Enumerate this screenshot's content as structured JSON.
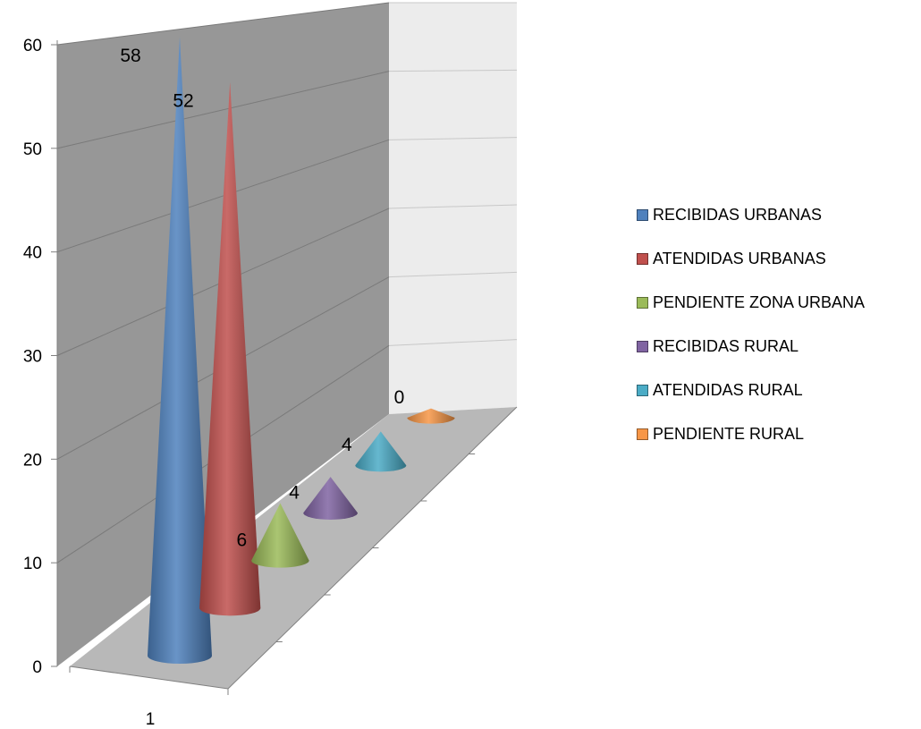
{
  "chart_data": {
    "type": "bar",
    "subtype": "3d-cone",
    "categories": [
      "1"
    ],
    "series": [
      {
        "name": "RECIBIDAS URBANAS",
        "values": [
          58
        ],
        "color": "#4F81BD"
      },
      {
        "name": "ATENDIDAS URBANAS",
        "values": [
          52
        ],
        "color": "#C0504D"
      },
      {
        "name": "PENDIENTE ZONA URBANA",
        "values": [
          6
        ],
        "color": "#9BBB59"
      },
      {
        "name": "RECIBIDAS RURAL",
        "values": [
          4
        ],
        "color": "#8064A2"
      },
      {
        "name": "ATENDIDAS RURAL",
        "values": [
          4
        ],
        "color": "#4BACC6"
      },
      {
        "name": "PENDIENTE RURAL",
        "values": [
          0
        ],
        "color": "#F79646"
      }
    ],
    "data_labels": [
      "58",
      "52",
      "6",
      "4",
      "4",
      "0"
    ],
    "y_ticks": [
      "0",
      "10",
      "20",
      "30",
      "40",
      "50",
      "60"
    ],
    "ylim": [
      0,
      60
    ],
    "grid": true,
    "legend_position": "right",
    "title": "",
    "xlabel": "",
    "ylabel": ""
  }
}
